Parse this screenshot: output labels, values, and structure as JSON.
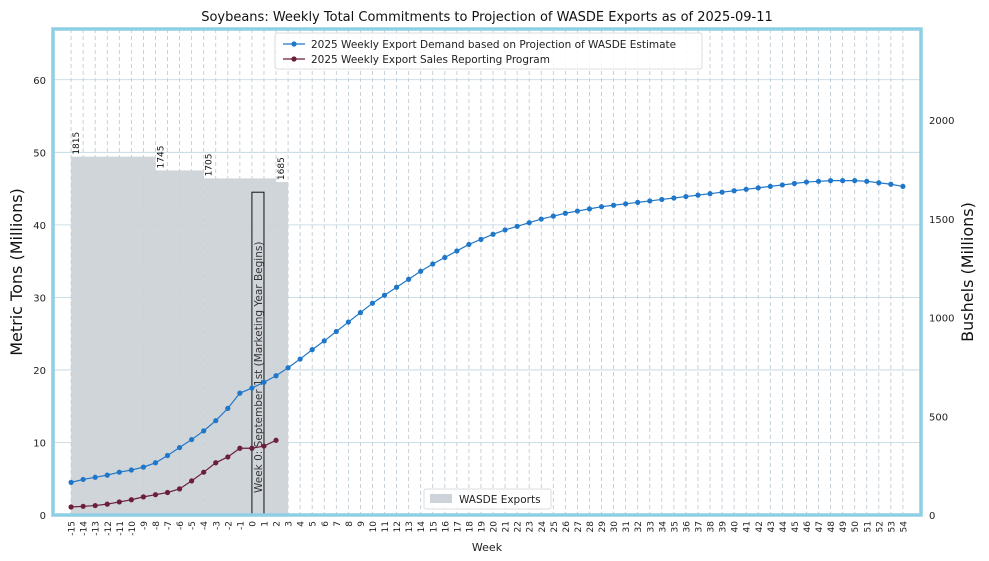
{
  "chart_data": {
    "type": "line",
    "title": "Soybeans: Weekly Total Commitments to Projection of WASDE Exports as of 2025-09-11",
    "xlabel": "Week",
    "ylabel": "Metric Tons (Millions)",
    "y2label": "Bushels (Millions)",
    "xlim": [
      -16.5,
      55.5
    ],
    "ylim": [
      0,
      67
    ],
    "y2lim": [
      0,
      2462
    ],
    "x_ticks": [
      -15,
      -14,
      -13,
      -12,
      -11,
      -10,
      -9,
      -8,
      -7,
      -6,
      -5,
      -4,
      -3,
      -2,
      -1,
      0,
      1,
      2,
      3,
      4,
      5,
      6,
      7,
      8,
      9,
      10,
      11,
      12,
      13,
      14,
      15,
      16,
      17,
      18,
      19,
      20,
      21,
      22,
      23,
      24,
      25,
      26,
      27,
      28,
      29,
      30,
      31,
      32,
      33,
      34,
      35,
      36,
      37,
      38,
      39,
      40,
      41,
      42,
      43,
      44,
      45,
      46,
      47,
      48,
      49,
      50,
      51,
      52,
      53,
      54
    ],
    "y_ticks": [
      0,
      10,
      20,
      30,
      40,
      50,
      60
    ],
    "y2_ticks": [
      0,
      500,
      1000,
      1500,
      2000
    ],
    "series": [
      {
        "name": "2025 Weekly Export Demand based on Projection of WASDE Estimate",
        "color": "#1f77c9",
        "x": [
          -15,
          -14,
          -13,
          -12,
          -11,
          -10,
          -9,
          -8,
          -7,
          -6,
          -5,
          -4,
          -3,
          -2,
          -1,
          0,
          1,
          2,
          3,
          4,
          5,
          6,
          7,
          8,
          9,
          10,
          11,
          12,
          13,
          14,
          15,
          16,
          17,
          18,
          19,
          20,
          21,
          22,
          23,
          24,
          25,
          26,
          27,
          28,
          29,
          30,
          31,
          32,
          33,
          34,
          35,
          36,
          37,
          38,
          39,
          40,
          41,
          42,
          43,
          44,
          45,
          46,
          47,
          48,
          49,
          50,
          51,
          52,
          53,
          54
        ],
        "values": [
          4.5,
          4.9,
          5.2,
          5.5,
          5.9,
          6.2,
          6.6,
          7.2,
          8.2,
          9.3,
          10.4,
          11.6,
          13,
          14.7,
          16.8,
          17.5,
          18.3,
          19.2,
          20.3,
          21.5,
          22.8,
          24,
          25.3,
          26.6,
          27.9,
          29.2,
          30.3,
          31.4,
          32.5,
          33.6,
          34.6,
          35.5,
          36.4,
          37.3,
          38,
          38.7,
          39.3,
          39.8,
          40.3,
          40.8,
          41.2,
          41.6,
          41.9,
          42.2,
          42.5,
          42.7,
          42.9,
          43.1,
          43.3,
          43.5,
          43.7,
          43.9,
          44.1,
          44.3,
          44.5,
          44.7,
          44.9,
          45.1,
          45.3,
          45.5,
          45.7,
          45.9,
          46,
          46.1,
          46.1,
          46.1,
          46,
          45.8,
          45.6,
          45.3
        ]
      },
      {
        "name": "2025 Weekly Export Sales Reporting Program",
        "color": "#6b1f3a",
        "x": [
          -15,
          -14,
          -13,
          -12,
          -11,
          -10,
          -9,
          -8,
          -7,
          -6,
          -5,
          -4,
          -3,
          -2,
          -1,
          0,
          1,
          2
        ],
        "values": [
          1.1,
          1.2,
          1.3,
          1.5,
          1.8,
          2.1,
          2.5,
          2.8,
          3.1,
          3.6,
          4.7,
          5.9,
          7.2,
          8,
          9.2,
          9.2,
          9.5,
          10.3
        ]
      }
    ],
    "bars": {
      "name": "WASDE Exports",
      "color": "#cdd3d8",
      "segments": [
        {
          "x_start": -15,
          "x_end": -8,
          "value_mt": 49.4,
          "label": "1815"
        },
        {
          "x_start": -8,
          "x_end": -4,
          "value_mt": 47.5,
          "label": "1745"
        },
        {
          "x_start": -4,
          "x_end": 2,
          "value_mt": 46.4,
          "label": "1705"
        },
        {
          "x_start": 2,
          "x_end": 3,
          "value_mt": 45.9,
          "label": "1685"
        }
      ]
    },
    "annotation": {
      "text": "Week 0: September 1st (Marketing Year Begins)",
      "x_start": 0,
      "x_end": 1,
      "y_top": 44.5
    },
    "legend_top": "top-center",
    "legend_bottom": "bottom-center",
    "grid": true
  }
}
